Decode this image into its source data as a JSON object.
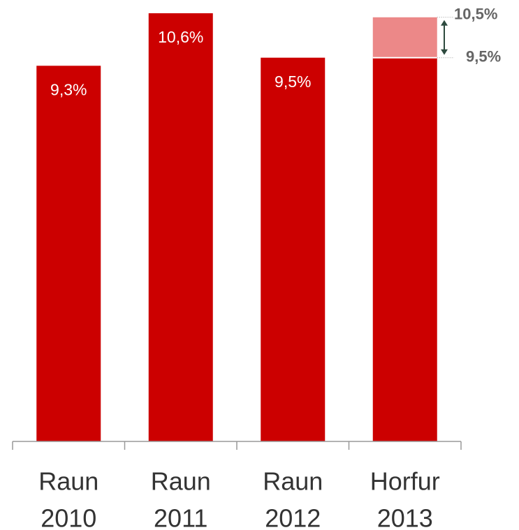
{
  "chart_data": {
    "type": "bar",
    "categories": [
      [
        "Raun",
        "2010"
      ],
      [
        "Raun",
        "2011"
      ],
      [
        "Raun",
        "2012"
      ],
      [
        "Horfur",
        "2013"
      ]
    ],
    "series": [
      {
        "color": "#cc0000",
        "values": [
          9.3,
          10.6,
          9.5,
          9.5
        ],
        "value_labels": [
          "9,3%",
          "10,6%",
          "9,5%",
          null
        ]
      }
    ],
    "annotations": [
      {
        "value": 10.5,
        "label": "10,5%"
      },
      {
        "value": 9.5,
        "label": "9,5%"
      }
    ],
    "range_color": "#ec8888",
    "ylim": [
      0,
      10.6
    ]
  }
}
